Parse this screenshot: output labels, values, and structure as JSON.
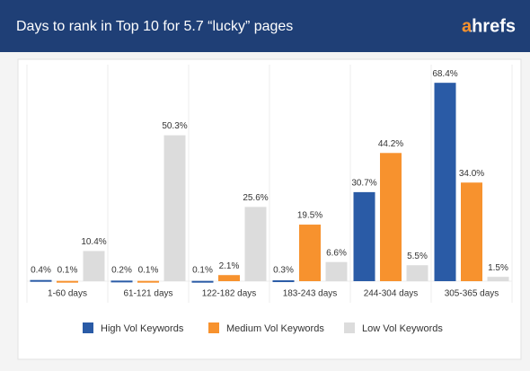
{
  "chart_data": {
    "type": "bar",
    "title": "Days to rank in Top 10 for 5.7 “lucky” pages",
    "brand": "ahrefs",
    "categories": [
      "1-60 days",
      "61-121 days",
      "122-182 days",
      "183-243 days",
      "244-304 days",
      "305-365 days"
    ],
    "series": [
      {
        "name": "High Vol Keywords",
        "color": "#2a5ba6",
        "values": [
          0.4,
          0.2,
          0.1,
          0.3,
          30.7,
          68.4
        ],
        "value_labels": [
          "0.4%",
          "0.2%",
          "0.1%",
          "0.3%",
          "30.7%",
          "68.4%"
        ]
      },
      {
        "name": "Medium Vol Keywords",
        "color": "#f7922e",
        "values": [
          0.1,
          0.1,
          2.1,
          19.5,
          44.2,
          34.0
        ],
        "value_labels": [
          "0.1%",
          "0.1%",
          "2.1%",
          "19.5%",
          "44.2%",
          "34.0%"
        ]
      },
      {
        "name": "Low Vol Keywords",
        "color": "#dcdcdc",
        "values": [
          10.4,
          50.3,
          25.6,
          6.6,
          5.5,
          1.5
        ],
        "value_labels": [
          "10.4%",
          "50.3%",
          "25.6%",
          "6.6%",
          "5.5%",
          "1.5%"
        ]
      }
    ],
    "ylim": [
      0,
      70
    ]
  }
}
